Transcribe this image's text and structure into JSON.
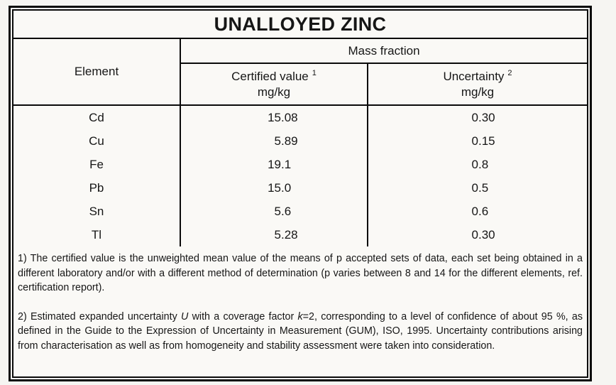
{
  "page": {
    "background": "#f6f5f2",
    "paper_background": "#faf9f6",
    "border_color": "#0a0a0a",
    "text_color": "#161616"
  },
  "title": "UNALLOYED ZINC",
  "table": {
    "element_header": "Element",
    "group_header": "Mass fraction",
    "columns": [
      {
        "label": "Certified value",
        "footnote_ref": "1",
        "unit": "mg/kg"
      },
      {
        "label": "Uncertainty",
        "footnote_ref": "2",
        "unit": "mg/kg"
      }
    ],
    "rows": [
      {
        "element": "Cd",
        "certified": "15.08",
        "uncertainty": "0.30"
      },
      {
        "element": "Cu",
        "certified": "5.89",
        "uncertainty": "0.15"
      },
      {
        "element": "Fe",
        "certified": "19.1",
        "uncertainty": "0.8"
      },
      {
        "element": "Pb",
        "certified": "15.0",
        "uncertainty": "0.5"
      },
      {
        "element": "Sn",
        "certified": "5.6",
        "uncertainty": "0.6"
      },
      {
        "element": "Tl",
        "certified": "5.28",
        "uncertainty": "0.30"
      }
    ]
  },
  "footnotes": {
    "note1": "1) The certified value is the unweighted mean value of the means of p accepted sets of data, each set being obtained in a different laboratory and/or with a different method of determination (p varies between 8 and 14 for the different elements, ref. certification report).",
    "note2_parts": [
      "2) Estimated expanded uncertainty ",
      "U",
      " with a coverage factor ",
      "k",
      "=2, corresponding to a level of confidence of about 95 %, as defined in the Guide to the Expression of Uncertainty in Measurement (GUM), ISO, 1995. Uncertainty contributions arising from characterisation as well as from homogeneity and stability assessment were taken into consideration."
    ]
  }
}
